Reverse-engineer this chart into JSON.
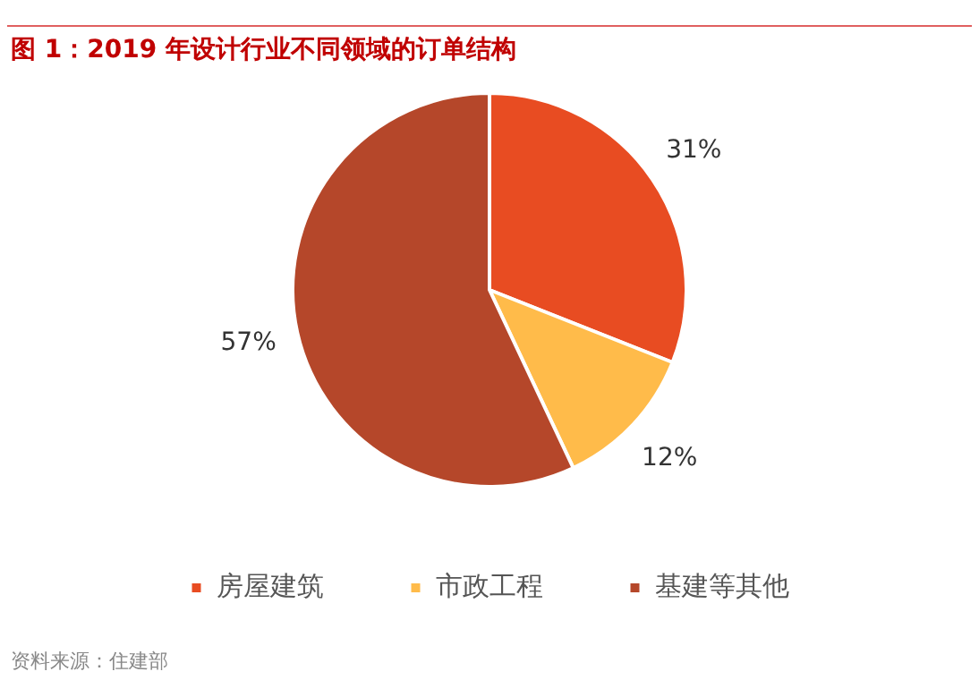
{
  "chart_data": {
    "type": "pie",
    "title": "图 1：2019 年设计行业不同领域的订单结构",
    "categories": [
      "房屋建筑",
      "市政工程",
      "基建等其他"
    ],
    "values": [
      31,
      12,
      57
    ],
    "colors": [
      "#e84c22",
      "#ffbb4a",
      "#b5472a"
    ],
    "value_labels": [
      "31%",
      "12%",
      "57%"
    ],
    "legend": "bottom",
    "annotations": [
      "资料来源：住建部"
    ]
  }
}
